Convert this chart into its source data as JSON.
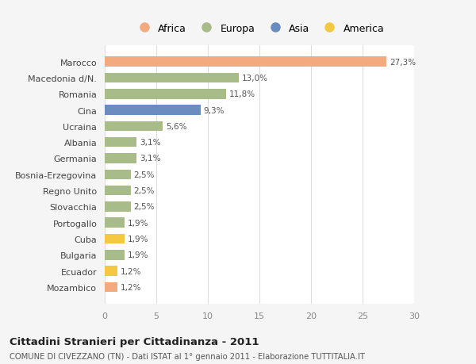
{
  "categories": [
    "Mozambico",
    "Ecuador",
    "Bulgaria",
    "Cuba",
    "Portogallo",
    "Slovacchia",
    "Regno Unito",
    "Bosnia-Erzegovina",
    "Germania",
    "Albania",
    "Ucraina",
    "Cina",
    "Romania",
    "Macedonia d/N.",
    "Marocco"
  ],
  "values": [
    1.2,
    1.2,
    1.9,
    1.9,
    1.9,
    2.5,
    2.5,
    2.5,
    3.1,
    3.1,
    5.6,
    9.3,
    11.8,
    13.0,
    27.3
  ],
  "labels": [
    "1,2%",
    "1,2%",
    "1,9%",
    "1,9%",
    "1,9%",
    "2,5%",
    "2,5%",
    "2,5%",
    "3,1%",
    "3,1%",
    "5,6%",
    "9,3%",
    "11,8%",
    "13,0%",
    "27,3%"
  ],
  "colors": [
    "#f2aa7e",
    "#f5c842",
    "#a8bc8a",
    "#f5c842",
    "#a8bc8a",
    "#a8bc8a",
    "#a8bc8a",
    "#a8bc8a",
    "#a8bc8a",
    "#a8bc8a",
    "#a8bc8a",
    "#6b8cbf",
    "#a8bc8a",
    "#a8bc8a",
    "#f2aa7e"
  ],
  "continent_colors": {
    "Africa": "#f2aa7e",
    "Europa": "#a8bc8a",
    "Asia": "#6b8cbf",
    "America": "#f5c842"
  },
  "legend_order": [
    "Africa",
    "Europa",
    "Asia",
    "America"
  ],
  "title": "Cittadini Stranieri per Cittadinanza - 2011",
  "subtitle": "COMUNE DI CIVEZZANO (TN) - Dati ISTAT al 1° gennaio 2011 - Elaborazione TUTTITALIA.IT",
  "xlim": [
    0,
    30
  ],
  "xticks": [
    0,
    5,
    10,
    15,
    20,
    25,
    30
  ],
  "background_color": "#f5f5f5",
  "bar_background": "#ffffff",
  "grid_color": "#dddddd"
}
